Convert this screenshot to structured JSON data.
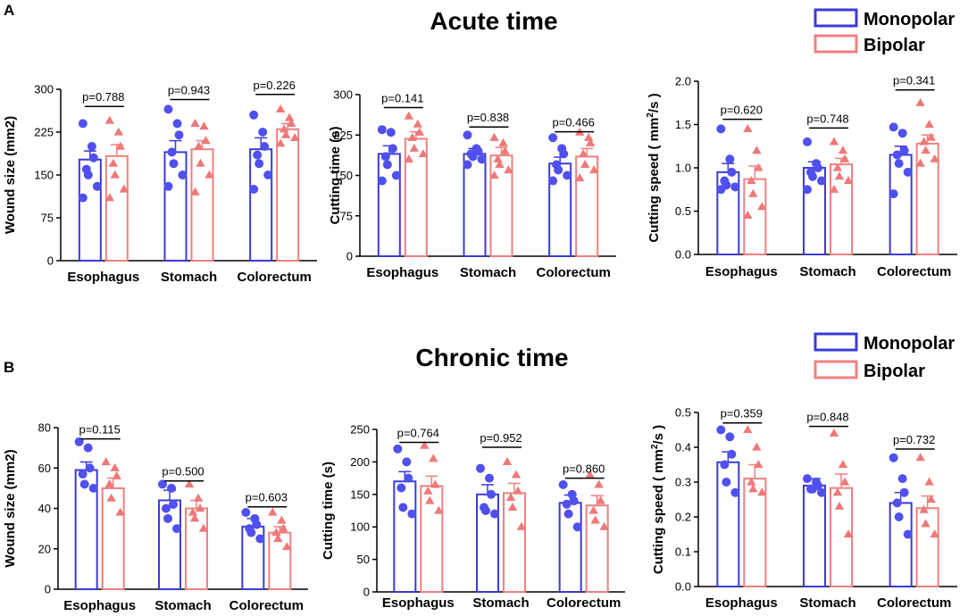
{
  "colors": {
    "monopolar": "#3b3bd6",
    "bipolar": "#f08080",
    "monopolar_dot": "#5050ee",
    "bipolar_dot": "#f07878",
    "axis": "#000000"
  },
  "sections": [
    {
      "panel_label": "A",
      "title": "Acute time",
      "legend": [
        "Monopolar",
        "Bipolar"
      ]
    },
    {
      "panel_label": "B",
      "title": "Chronic time",
      "legend": [
        "Monopolar",
        "Bipolar"
      ]
    }
  ],
  "chart_data": [
    {
      "type": "bar",
      "id": "a1",
      "title": "",
      "ylabel": "Wound size (mm2)",
      "ylim": [
        0,
        300
      ],
      "yticks": [
        0,
        75,
        150,
        225,
        300
      ],
      "categories": [
        "Esophagus",
        "Stomach",
        "Colorectum"
      ],
      "series": [
        {
          "name": "Monopolar",
          "values": [
            177,
            190,
            195
          ],
          "sem": [
            15,
            20,
            20
          ],
          "points": [
            [
              240,
              200,
              180,
              160,
              150,
              130,
              110
            ],
            [
              265,
              240,
              220,
              190,
              170,
              150,
              130
            ],
            [
              255,
              225,
              200,
              185,
              170,
              150,
              125
            ]
          ]
        },
        {
          "name": "Bipolar",
          "values": [
            183,
            195,
            230
          ],
          "sem": [
            20,
            15,
            10
          ],
          "points": [
            [
              245,
              225,
              200,
              170,
              150,
              125,
              110
            ],
            [
              240,
              235,
              210,
              200,
              170,
              150,
              120
            ],
            [
              265,
              250,
              240,
              230,
              220,
              215,
              205
            ]
          ]
        }
      ],
      "pvalues": [
        "p=0.788",
        "p=0.943",
        "p=0.226"
      ],
      "p_level": [
        0.9,
        0.94,
        0.97
      ],
      "p_labeltop": 0.93
    },
    {
      "type": "bar",
      "id": "a2",
      "title": "",
      "ylabel": "Cutting time (s)",
      "ylim": [
        0,
        300
      ],
      "yticks": [
        0,
        75,
        150,
        225,
        300
      ],
      "categories": [
        "Esophagus",
        "Stomach",
        "Colorectum"
      ],
      "series": [
        {
          "name": "Monopolar",
          "values": [
            190,
            190,
            172
          ],
          "sem": [
            15,
            10,
            12
          ],
          "points": [
            [
              235,
              230,
              200,
              185,
              170,
              150,
              140
            ],
            [
              225,
              200,
              195,
              190,
              185,
              180,
              170
            ],
            [
              220,
              200,
              190,
              170,
              160,
              150,
              140
            ]
          ]
        },
        {
          "name": "Bipolar",
          "values": [
            218,
            187,
            185
          ],
          "sem": [
            13,
            15,
            15
          ],
          "points": [
            [
              260,
              245,
              230,
              220,
              200,
              190,
              180
            ],
            [
              220,
              210,
              195,
              180,
              170,
              160,
              150
            ],
            [
              230,
              220,
              210,
              190,
              170,
              160,
              145
            ]
          ]
        }
      ],
      "pvalues": [
        "p=0.141",
        "p=0.838",
        "p=0.466"
      ],
      "p_level": [
        0.92,
        0.8,
        0.77
      ],
      "p_labeltop": 0.94
    },
    {
      "type": "bar",
      "id": "a3",
      "title": "",
      "ylabel": "Cutting speed ( mm²/s )",
      "ylabel_main": "Cutting speed ( mm",
      "ylabel_sup": "2",
      "ylabel_tail": "/s )",
      "ylim": [
        0,
        2.0
      ],
      "yticks": [
        "0.0",
        "0.5",
        "1.0",
        "1.5",
        "2.0"
      ],
      "categories": [
        "Esophagus",
        "Stomach",
        "Colorectum"
      ],
      "series": [
        {
          "name": "Monopolar",
          "values": [
            0.95,
            1.0,
            1.15
          ],
          "sem": [
            0.1,
            0.07,
            0.1
          ],
          "points": [
            [
              1.45,
              1.1,
              0.95,
              0.85,
              0.8,
              0.78,
              0.75
            ],
            [
              1.3,
              1.05,
              1.0,
              0.95,
              0.9,
              0.85,
              0.75
            ],
            [
              1.47,
              1.4,
              1.2,
              1.15,
              1.05,
              0.95,
              0.7
            ]
          ]
        },
        {
          "name": "Bipolar",
          "values": [
            0.87,
            1.04,
            1.28
          ],
          "sem": [
            0.15,
            0.07,
            0.1
          ],
          "points": [
            [
              1.45,
              1.2,
              1.0,
              0.85,
              0.7,
              0.55,
              0.45
            ],
            [
              1.3,
              1.2,
              1.1,
              1.0,
              0.9,
              0.85,
              0.75
            ],
            [
              1.75,
              1.5,
              1.35,
              1.3,
              1.2,
              1.1,
              1.05
            ]
          ]
        }
      ],
      "pvalues": [
        "p=0.620",
        "p=0.748",
        "p=0.341"
      ],
      "p_level": [
        0.78,
        0.73,
        0.95
      ],
      "p_labeltop": 0.85
    },
    {
      "type": "bar",
      "id": "b1",
      "title": "",
      "ylabel": "Wound size (mm2)",
      "ylim": [
        0,
        80
      ],
      "yticks": [
        0,
        20,
        40,
        60,
        80
      ],
      "categories": [
        "Esophagus",
        "Stomach",
        "Colorectum"
      ],
      "series": [
        {
          "name": "Monopolar",
          "values": [
            59,
            44,
            31
          ],
          "sem": [
            4,
            5,
            4
          ],
          "points": [
            [
              73,
              70,
              60,
              57,
              52,
              50
            ],
            [
              52,
              50,
              42,
              40,
              35,
              30
            ],
            [
              38,
              35,
              32,
              30,
              28,
              25
            ]
          ]
        },
        {
          "name": "Bipolar",
          "values": [
            50,
            40,
            28
          ],
          "sem": [
            5,
            4,
            3
          ],
          "points": [
            [
              63,
              60,
              56,
              52,
              45,
              38
            ],
            [
              52,
              45,
              40,
              38,
              35,
              30
            ],
            [
              38,
              34,
              30,
              28,
              25,
              21
            ]
          ]
        }
      ],
      "pvalues": [
        "p=0.115",
        "p=0.500",
        "p=0.603"
      ],
      "p_level": [
        0.93,
        0.67,
        0.51
      ],
      "p_labeltop": 0.95
    },
    {
      "type": "bar",
      "id": "b2",
      "title": "",
      "ylabel": "Cutting time (s)",
      "ylim": [
        0,
        250
      ],
      "yticks": [
        0,
        50,
        100,
        150,
        200,
        250
      ],
      "categories": [
        "Esophagus",
        "Stomach",
        "Colorectum"
      ],
      "series": [
        {
          "name": "Monopolar",
          "values": [
            170,
            150,
            137
          ],
          "sem": [
            15,
            15,
            12
          ],
          "points": [
            [
              220,
              200,
              175,
              160,
              130,
              120
            ],
            [
              190,
              175,
              150,
              130,
              125,
              120
            ],
            [
              165,
              150,
              140,
              135,
              120,
              100
            ]
          ]
        },
        {
          "name": "Bipolar",
          "values": [
            163,
            152,
            133
          ],
          "sem": [
            15,
            15,
            15
          ],
          "points": [
            [
              225,
              205,
              165,
              155,
              140,
              125
            ],
            [
              200,
              180,
              155,
              145,
              130,
              100
            ],
            [
              180,
              165,
              140,
              125,
              110,
              100
            ]
          ]
        }
      ],
      "pvalues": [
        "p=0.764",
        "p=0.952",
        "p=0.860"
      ],
      "p_level": [
        0.92,
        0.89,
        0.7
      ],
      "p_labeltop": 0.92
    },
    {
      "type": "bar",
      "id": "b3",
      "title": "",
      "ylabel": "Cutting speed ( mm²/s )",
      "ylabel_main": "Cutting speed ( mm",
      "ylabel_sup": "2",
      "ylabel_tail": "/s )",
      "ylim": [
        0,
        0.5
      ],
      "yticks": [
        "0.0",
        "0.1",
        "0.2",
        "0.3",
        "0.4",
        "0.5"
      ],
      "categories": [
        "Esophagus",
        "Stomach",
        "Colorectum"
      ],
      "series": [
        {
          "name": "Monopolar",
          "values": [
            0.357,
            0.29,
            0.24
          ],
          "sem": [
            0.03,
            0.02,
            0.03
          ],
          "points": [
            [
              0.45,
              0.43,
              0.38,
              0.35,
              0.3,
              0.27
            ],
            [
              0.31,
              0.3,
              0.29,
              0.28,
              0.28,
              0.27
            ],
            [
              0.37,
              0.31,
              0.27,
              0.24,
              0.2,
              0.15
            ]
          ]
        },
        {
          "name": "Bipolar",
          "values": [
            0.31,
            0.283,
            0.225
          ],
          "sem": [
            0.04,
            0.04,
            0.035
          ],
          "points": [
            [
              0.45,
              0.4,
              0.35,
              0.3,
              0.28,
              0.27
            ],
            [
              0.44,
              0.35,
              0.3,
              0.27,
              0.23,
              0.15
            ],
            [
              0.37,
              0.3,
              0.25,
              0.22,
              0.18,
              0.15
            ]
          ]
        }
      ],
      "pvalues": [
        "p=0.359",
        "p=0.848",
        "p=0.732"
      ],
      "p_level": [
        0.94,
        0.92,
        0.79
      ],
      "p_labeltop": 0.95
    }
  ]
}
